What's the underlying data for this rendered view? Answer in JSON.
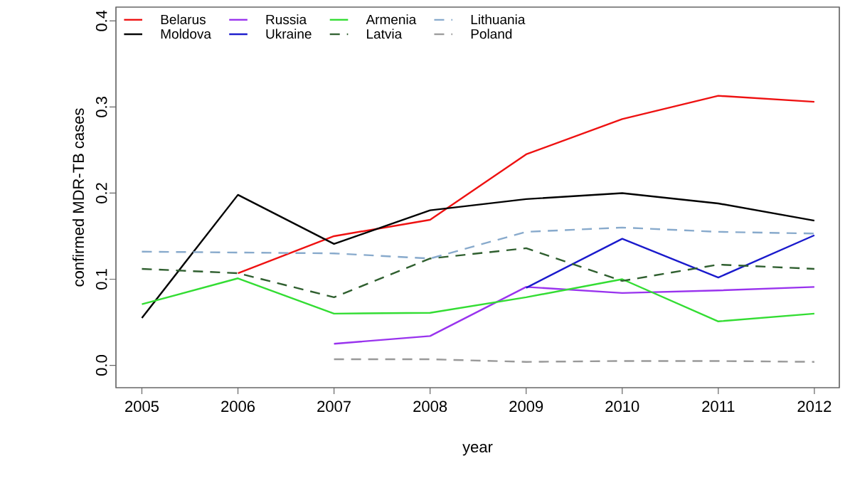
{
  "chart_data": {
    "type": "line",
    "xlabel": "year",
    "ylabel": "confirmed MDR-TB cases",
    "x": [
      2005,
      2006,
      2007,
      2008,
      2009,
      2010,
      2011,
      2012
    ],
    "xlim": [
      2004.73,
      2012.26
    ],
    "ylim": [
      -0.026,
      0.416
    ],
    "xticks": [
      2005,
      2006,
      2007,
      2008,
      2009,
      2010,
      2011,
      2012
    ],
    "yticks": [
      {
        "value": 0,
        "label": "0.0"
      },
      0.1,
      0.2,
      0.3,
      0.4
    ],
    "legend": "top left",
    "grid": false,
    "marker": "none",
    "series": [
      {
        "name": "Belarus",
        "color": "#ee1111",
        "line_style": "solid",
        "values": [
          null,
          0.107,
          0.15,
          0.169,
          0.245,
          0.286,
          0.313,
          0.306
        ]
      },
      {
        "name": "Moldova",
        "color": "#000000",
        "line_style": "solid",
        "values": [
          0.055,
          0.198,
          0.141,
          0.18,
          0.193,
          0.2,
          0.188,
          0.168
        ]
      },
      {
        "name": "Russia",
        "color": "#9933ee",
        "line_style": "solid",
        "values": [
          null,
          null,
          0.025,
          0.034,
          0.091,
          0.084,
          0.087,
          0.091
        ]
      },
      {
        "name": "Ukraine",
        "color": "#1a1acc",
        "line_style": "solid",
        "values": [
          null,
          null,
          null,
          null,
          0.09,
          0.147,
          0.102,
          0.151
        ]
      },
      {
        "name": "Armenia",
        "color": "#33dd33",
        "line_style": "solid",
        "values": [
          0.071,
          0.101,
          0.06,
          0.061,
          0.079,
          0.1,
          0.051,
          0.06
        ]
      },
      {
        "name": "Latvia",
        "color": "#2f5f2f",
        "line_style": "dashed",
        "values": [
          0.112,
          0.107,
          0.079,
          0.124,
          0.136,
          0.098,
          0.117,
          0.112
        ]
      },
      {
        "name": "Lithuania",
        "color": "#88aacc",
        "line_style": "dashed",
        "values": [
          0.132,
          0.131,
          0.13,
          0.124,
          0.155,
          0.16,
          0.155,
          0.153
        ]
      },
      {
        "name": "Poland",
        "color": "#999999",
        "line_style": "dashed",
        "values": [
          null,
          null,
          0.007,
          0.007,
          0.004,
          0.005,
          0.005,
          0.004
        ]
      }
    ]
  }
}
